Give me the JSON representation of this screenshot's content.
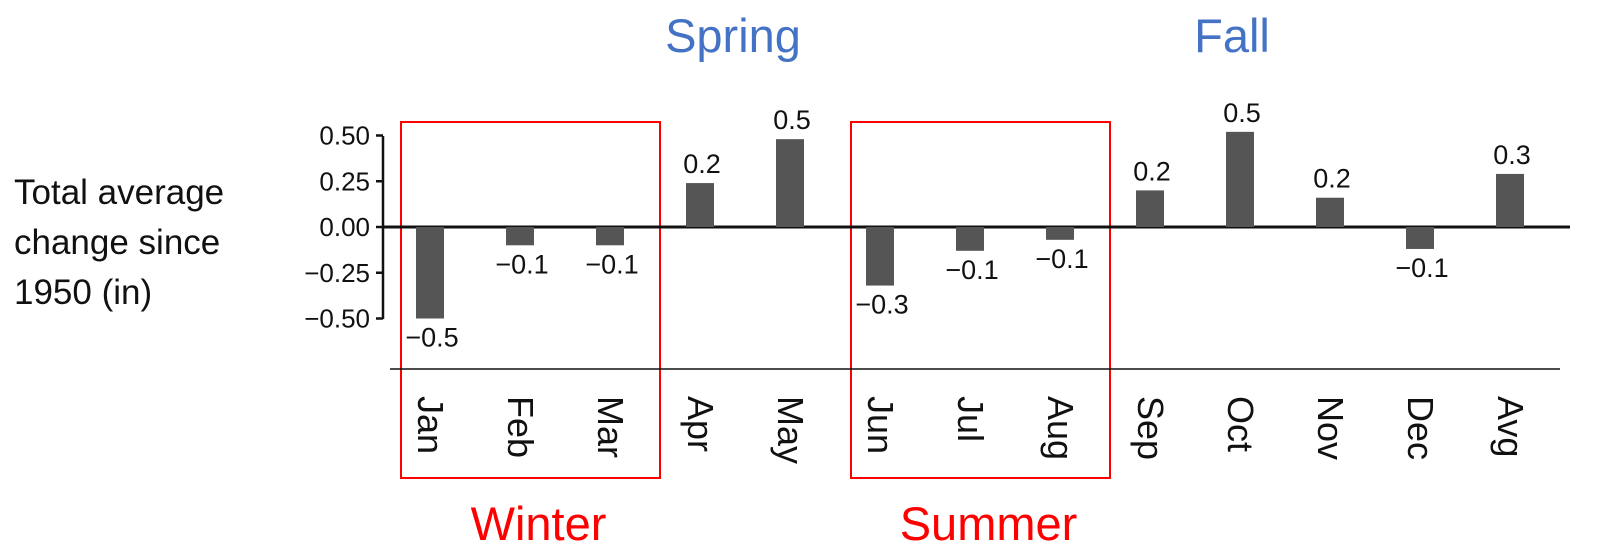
{
  "chart_data": {
    "type": "bar",
    "categories": [
      "Jan",
      "Feb",
      "Mar",
      "Apr",
      "May",
      "Jun",
      "Jul",
      "Aug",
      "Sep",
      "Oct",
      "Nov",
      "Dec",
      "Avg"
    ],
    "values": [
      -0.5,
      -0.1,
      -0.1,
      0.24,
      0.48,
      -0.32,
      -0.13,
      -0.07,
      0.2,
      0.52,
      0.16,
      -0.12,
      0.29
    ],
    "value_labels": [
      "−0.5",
      "−0.1",
      "−0.1",
      "0.2",
      "0.5",
      "−0.3",
      "−0.1",
      "−0.1",
      "0.2",
      "0.5",
      "0.2",
      "−0.1",
      "0.3"
    ],
    "ylabel_lines": [
      "Total average",
      "change since",
      "1950 (in)"
    ],
    "yticks": [
      "0.50",
      "0.25",
      "0.00",
      "−0.25",
      "−0.50"
    ],
    "ylim": [
      -0.5,
      0.5
    ],
    "grid": false,
    "bar_color": "#555555",
    "season_boxes": [
      {
        "label": "Winter",
        "months": [
          "Jan",
          "Feb",
          "Mar"
        ],
        "color": "#ff0000"
      },
      {
        "label": "Summer",
        "months": [
          "Jun",
          "Jul",
          "Aug"
        ],
        "color": "#ff0000"
      }
    ],
    "season_labels": [
      {
        "label": "Spring",
        "color": "#4472c4"
      },
      {
        "label": "Fall",
        "color": "#4472c4"
      }
    ]
  }
}
